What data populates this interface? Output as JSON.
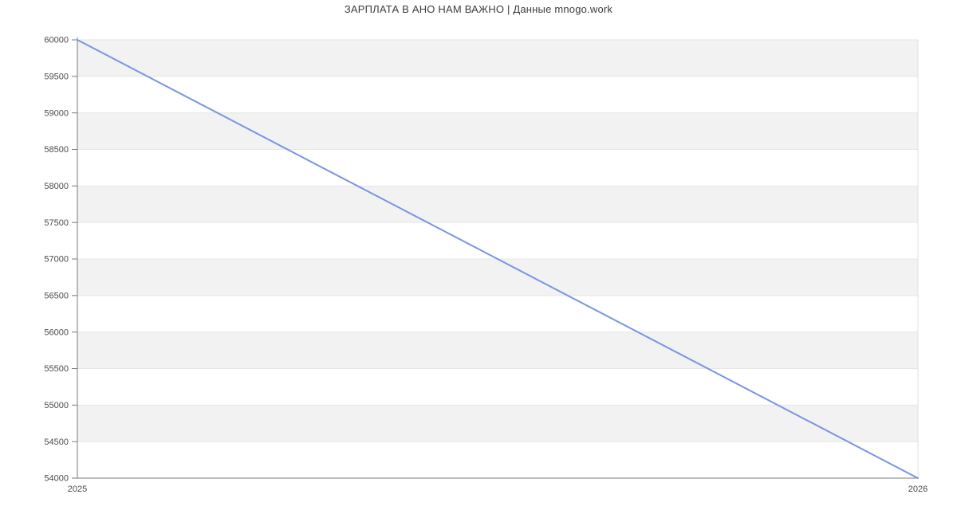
{
  "title": "ЗАРПЛАТА В АНО НАМ ВАЖНО | Данные mnogo.work",
  "chart_data": {
    "type": "line",
    "title": "ЗАРПЛАТА В АНО НАМ ВАЖНО | Данные mnogo.work",
    "x": [
      2025,
      2026
    ],
    "values": [
      60000,
      54000
    ],
    "xlabel": "",
    "ylabel": "",
    "xlim": [
      2025,
      2026
    ],
    "ylim": [
      54000,
      60000
    ],
    "ytick_step": 500,
    "yticks": [
      54000,
      54500,
      55000,
      55500,
      56000,
      56500,
      57000,
      57500,
      58000,
      58500,
      59000,
      59500,
      60000
    ],
    "xticks": [
      "2025",
      "2026"
    ],
    "legend": "none",
    "grid": "horizontal-bands-alternating",
    "colors": {
      "line": "#7795e4",
      "band_fill": "#f2f2f2",
      "band_white": "#ffffff",
      "gridline": "#e6e6e6",
      "right_border": "#e2e2e2",
      "axis": "#7a7a7a",
      "tick_label": "#4a4a4a",
      "title_text": "#3c3c3c"
    }
  }
}
